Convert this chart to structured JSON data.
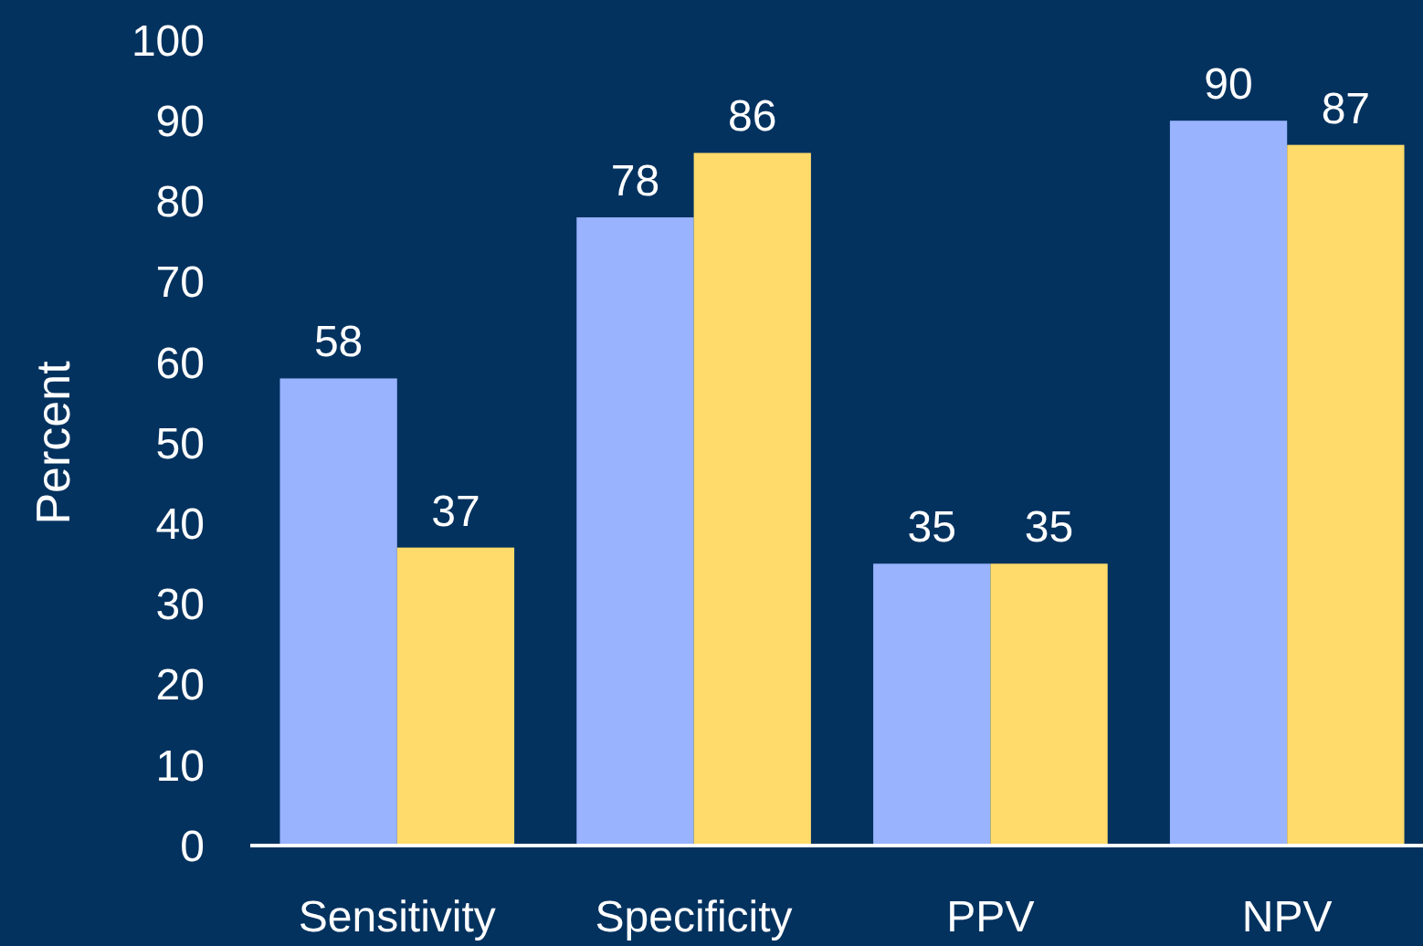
{
  "chart_data": {
    "type": "bar",
    "ylabel": "Percent",
    "categories": [
      "Sensitivity",
      "Specificity",
      "PPV",
      "NPV"
    ],
    "series": [
      {
        "color": "#99b3ff",
        "values": [
          58,
          78,
          35,
          90
        ]
      },
      {
        "color": "#ffdb6b",
        "values": [
          37,
          86,
          35,
          87
        ]
      }
    ],
    "ylim": [
      0,
      100
    ],
    "yticks": [
      0,
      10,
      20,
      30,
      40,
      50,
      60,
      70,
      80,
      90,
      100
    ],
    "data_labels": true
  }
}
